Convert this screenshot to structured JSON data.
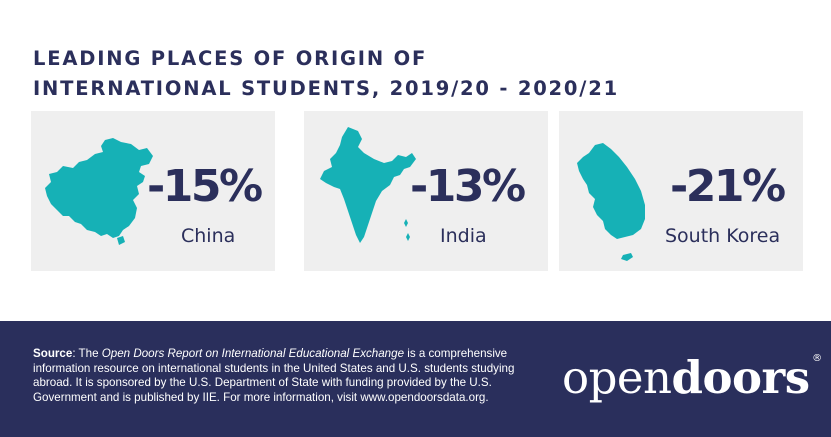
{
  "title": {
    "line1": "LEADING PLACES OF ORIGIN OF",
    "line2": "INTERNATIONAL STUDENTS, 2019/20 - 2020/21"
  },
  "cards": [
    {
      "percent": "-15%",
      "country": "China",
      "map_icon": "china-map-icon"
    },
    {
      "percent": "-13%",
      "country": "India",
      "map_icon": "india-map-icon"
    },
    {
      "percent": "-21%",
      "country": "South Korea",
      "map_icon": "south-korea-map-icon"
    }
  ],
  "footer": {
    "source_label": "Source",
    "source_prefix": ": The ",
    "report_title": "Open Doors Report on International Educational Exchange",
    "source_text": " is a comprehensive information resource on international students in the United States and U.S. students studying abroad. It is sponsored by the U.S. Department of State with funding provided by the U.S. Government and is published by IIE. For more information, visit www.opendoorsdata.org.",
    "logo_open": "open",
    "logo_doors": "doors",
    "logo_mark": "®"
  },
  "colors": {
    "navy": "#2b2f5b",
    "teal": "#16b1b6",
    "card_bg": "#efefef",
    "footer_bg": "#2a2f5c"
  }
}
